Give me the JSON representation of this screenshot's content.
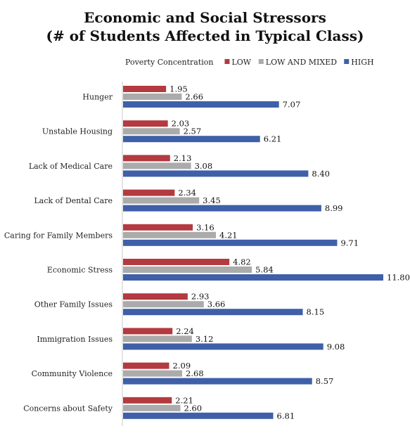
{
  "chart_data": {
    "type": "bar",
    "orientation": "horizontal",
    "title": [
      "Economic and Social Stressors",
      "(# of Students Affected in Typical Class)"
    ],
    "legend_title": "Poverty Concentration",
    "legend_placement": "top-right",
    "grid": false,
    "xlim": [
      0,
      12
    ],
    "categories": [
      "Hunger",
      "Unstable Housing",
      "Lack of Medical Care",
      "Lack of Dental Care",
      "Caring for Family Members",
      "Economic Stress",
      "Other Family Issues",
      "Immigration Issues",
      "Community Violence",
      "Concerns about Safety"
    ],
    "series": [
      {
        "name": "LOW",
        "color": "#B33A3F",
        "values": [
          1.95,
          2.03,
          2.13,
          2.34,
          3.16,
          4.82,
          2.93,
          2.24,
          2.09,
          2.21
        ],
        "labels": [
          "1.95",
          "2.03",
          "2.13",
          "2.34",
          "3.16",
          "4.82",
          "2.93",
          "2.24",
          "2.09",
          "2.21"
        ]
      },
      {
        "name": "LOW AND MIXED",
        "color": "#ABABAB",
        "values": [
          2.66,
          2.57,
          3.08,
          3.45,
          4.21,
          5.84,
          3.66,
          3.12,
          2.68,
          2.6
        ],
        "labels": [
          "2.66",
          "2.57",
          "3.08",
          "3.45",
          "4.21",
          "5.84",
          "3.66",
          "3.12",
          "2.68",
          "2.60"
        ]
      },
      {
        "name": "HIGH",
        "color": "#3F60A8",
        "values": [
          7.07,
          6.21,
          8.4,
          8.99,
          9.71,
          11.8,
          8.15,
          9.08,
          8.57,
          6.81
        ],
        "labels": [
          "7.07",
          "6.21",
          "8.40",
          "8.99",
          "9.71",
          "11.80",
          "8.15",
          "9.08",
          "8.57",
          "6.81"
        ]
      }
    ]
  }
}
